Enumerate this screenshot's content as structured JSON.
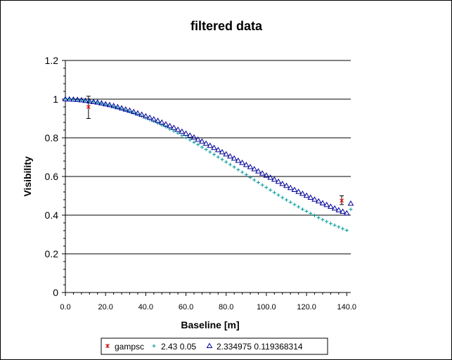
{
  "chart_data": {
    "type": "scatter",
    "title": "filtered data",
    "xlabel": "Baseline [m]",
    "ylabel": "Visibility",
    "xlim": [
      0,
      142
    ],
    "ylim": [
      0,
      1.2
    ],
    "x_ticks": [
      0,
      20,
      40,
      60,
      80,
      100,
      120,
      140
    ],
    "x_tick_labels": [
      "0.0",
      "20.0",
      "40.0",
      "60.0",
      "80.0",
      "100.0",
      "120.0",
      "140.0"
    ],
    "y_ticks": [
      0,
      0.2,
      0.4,
      0.6,
      0.8,
      1,
      1.2
    ],
    "y_tick_labels": [
      "0",
      "0.2",
      "0.4",
      "0.6",
      "0.8",
      "1",
      "1.2"
    ],
    "grid": "horizontal",
    "legend_position": "bottom",
    "series": [
      {
        "name": "gampsc",
        "marker": "star",
        "color": "#cc0000",
        "points": [
          {
            "x": 11.5,
            "y": 0.96,
            "err_low": 0.9,
            "err_high": 1.015
          },
          {
            "x": 137.5,
            "y": 0.475,
            "err_low": 0.455,
            "err_high": 0.5
          }
        ]
      },
      {
        "name": "2.43 0.05",
        "marker": "plus",
        "color": "#009999",
        "x": [
          0,
          2,
          4,
          6,
          8,
          10,
          12,
          14,
          16,
          18,
          20,
          22,
          24,
          26,
          28,
          30,
          32,
          34,
          36,
          38,
          40,
          42,
          44,
          46,
          48,
          50,
          52,
          54,
          56,
          58,
          60,
          62,
          64,
          66,
          68,
          70,
          72,
          74,
          76,
          78,
          80,
          82,
          84,
          86,
          88,
          90,
          92,
          94,
          96,
          98,
          100,
          102,
          104,
          106,
          108,
          110,
          112,
          114,
          116,
          118,
          120,
          122,
          124,
          126,
          128,
          130,
          132,
          134,
          136,
          138,
          140,
          142
        ],
        "y": [
          1.0,
          0.999,
          0.998,
          0.996,
          0.994,
          0.991,
          0.988,
          0.985,
          0.981,
          0.977,
          0.972,
          0.967,
          0.961,
          0.955,
          0.949,
          0.942,
          0.935,
          0.928,
          0.92,
          0.912,
          0.903,
          0.894,
          0.885,
          0.876,
          0.866,
          0.856,
          0.845,
          0.835,
          0.824,
          0.812,
          0.801,
          0.789,
          0.777,
          0.765,
          0.752,
          0.74,
          0.727,
          0.714,
          0.701,
          0.688,
          0.675,
          0.662,
          0.649,
          0.635,
          0.622,
          0.609,
          0.595,
          0.582,
          0.569,
          0.556,
          0.543,
          0.53,
          0.517,
          0.504,
          0.491,
          0.479,
          0.467,
          0.455,
          0.443,
          0.431,
          0.42,
          0.409,
          0.398,
          0.387,
          0.377,
          0.367,
          0.357,
          0.348,
          0.339,
          0.33,
          0.322,
          0.43
        ]
      },
      {
        "name": "2.334975 0.119368314",
        "marker": "triangle",
        "color": "#000099",
        "x": [
          0,
          2,
          4,
          6,
          8,
          10,
          12,
          14,
          16,
          18,
          20,
          22,
          24,
          26,
          28,
          30,
          32,
          34,
          36,
          38,
          40,
          42,
          44,
          46,
          48,
          50,
          52,
          54,
          56,
          58,
          60,
          62,
          64,
          66,
          68,
          70,
          72,
          74,
          76,
          78,
          80,
          82,
          84,
          86,
          88,
          90,
          92,
          94,
          96,
          98,
          100,
          102,
          104,
          106,
          108,
          110,
          112,
          114,
          116,
          118,
          120,
          122,
          124,
          126,
          128,
          130,
          132,
          134,
          136,
          138,
          140,
          142
        ],
        "y": [
          1.0,
          0.999,
          0.998,
          0.997,
          0.995,
          0.992,
          0.989,
          0.986,
          0.983,
          0.979,
          0.974,
          0.97,
          0.965,
          0.959,
          0.953,
          0.947,
          0.941,
          0.934,
          0.927,
          0.92,
          0.912,
          0.904,
          0.896,
          0.888,
          0.879,
          0.87,
          0.861,
          0.852,
          0.842,
          0.832,
          0.822,
          0.812,
          0.802,
          0.791,
          0.781,
          0.77,
          0.759,
          0.748,
          0.737,
          0.726,
          0.715,
          0.704,
          0.693,
          0.682,
          0.671,
          0.66,
          0.649,
          0.638,
          0.627,
          0.616,
          0.605,
          0.594,
          0.584,
          0.573,
          0.562,
          0.552,
          0.541,
          0.531,
          0.521,
          0.511,
          0.501,
          0.491,
          0.481,
          0.472,
          0.462,
          0.453,
          0.444,
          0.435,
          0.426,
          0.418,
          0.41,
          0.46
        ]
      }
    ]
  }
}
